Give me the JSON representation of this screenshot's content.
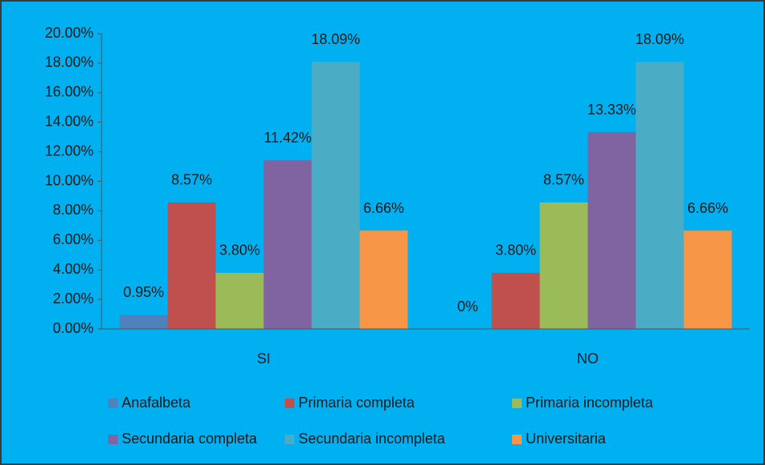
{
  "chart_data": {
    "type": "bar",
    "categories": [
      "SI",
      "NO"
    ],
    "series": [
      {
        "name": "Anafalbeta",
        "color": "#4f81bd",
        "values": [
          0.95,
          0
        ],
        "value_labels": [
          "0.95%",
          "0%"
        ]
      },
      {
        "name": "Primaria completa",
        "color": "#c0504d",
        "values": [
          8.57,
          3.8
        ],
        "value_labels": [
          "8.57%",
          "3.80%"
        ]
      },
      {
        "name": "Primaria incompleta",
        "color": "#9bbb59",
        "values": [
          3.8,
          8.57
        ],
        "value_labels": [
          "3.80%",
          "8.57%"
        ]
      },
      {
        "name": "Secundaria completa",
        "color": "#8064a2",
        "values": [
          11.42,
          13.33
        ],
        "value_labels": [
          "11.42%",
          "13.33%"
        ]
      },
      {
        "name": "Secundaria incompleta",
        "color": "#4bacc6",
        "values": [
          18.09,
          18.09
        ],
        "value_labels": [
          "18.09%",
          "18.09%"
        ]
      },
      {
        "name": "Universitaria",
        "color": "#f79646",
        "values": [
          6.66,
          6.66
        ],
        "value_labels": [
          "6.66%",
          "6.66%"
        ]
      }
    ],
    "ylim": [
      0,
      20
    ],
    "yticks": [
      {
        "value": 0,
        "label": "0.00%"
      },
      {
        "value": 2,
        "label": "2.00%"
      },
      {
        "value": 4,
        "label": "4.00%"
      },
      {
        "value": 6,
        "label": "6.00%"
      },
      {
        "value": 8,
        "label": "8.00%"
      },
      {
        "value": 10,
        "label": "10.00%"
      },
      {
        "value": 12,
        "label": "12.00%"
      },
      {
        "value": 14,
        "label": "14.00%"
      },
      {
        "value": 16,
        "label": "16.00%"
      },
      {
        "value": 18,
        "label": "18.00%"
      },
      {
        "value": 20,
        "label": "20.00%"
      }
    ],
    "legend": "bottom"
  }
}
